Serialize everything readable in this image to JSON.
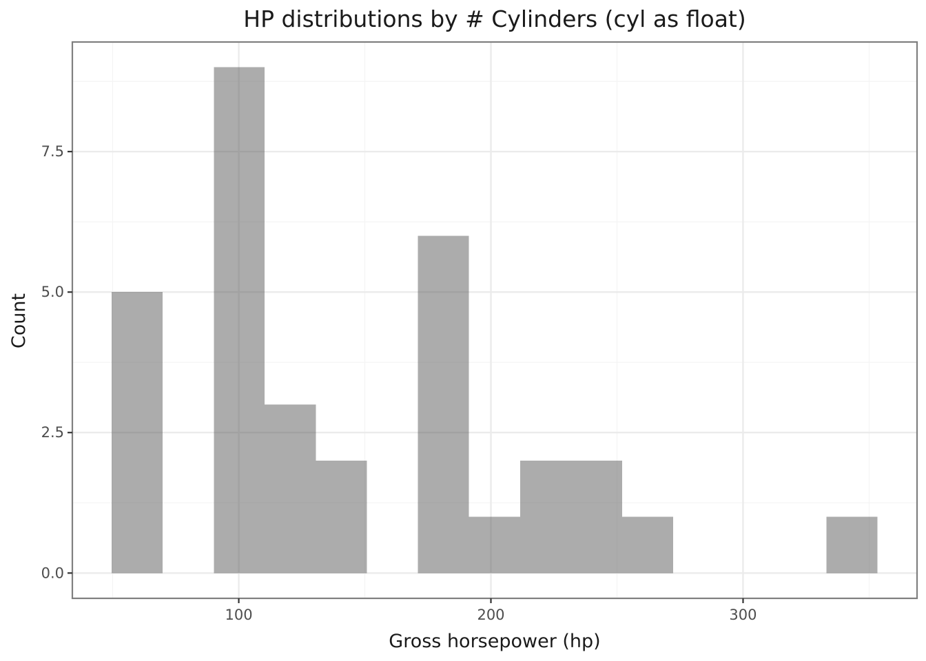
{
  "chart_data": {
    "type": "bar",
    "subtype": "histogram",
    "title": "HP distributions by # Cylinders (cyl as float)",
    "xlabel": "Gross horsepower (hp)",
    "ylabel": "Count",
    "xlim": [
      34,
      369
    ],
    "ylim": [
      -0.45,
      9.45
    ],
    "x_ticks": [
      100,
      200,
      300
    ],
    "x_tick_labels": [
      "100",
      "200",
      "300"
    ],
    "y_ticks": [
      0,
      2.5,
      5,
      7.5
    ],
    "y_tick_labels": [
      "0.0",
      "2.5",
      "5.0",
      "7.5"
    ],
    "bin_width": 20.25,
    "bins": [
      {
        "x0": 49.6,
        "x1": 69.8,
        "count": 5
      },
      {
        "x0": 69.8,
        "x1": 90.1,
        "count": 0
      },
      {
        "x0": 90.1,
        "x1": 110.3,
        "count": 9
      },
      {
        "x0": 110.3,
        "x1": 130.6,
        "count": 3
      },
      {
        "x0": 130.6,
        "x1": 150.8,
        "count": 2
      },
      {
        "x0": 150.8,
        "x1": 171.1,
        "count": 0
      },
      {
        "x0": 171.1,
        "x1": 191.3,
        "count": 6
      },
      {
        "x0": 191.3,
        "x1": 211.6,
        "count": 1
      },
      {
        "x0": 211.6,
        "x1": 231.8,
        "count": 2
      },
      {
        "x0": 231.8,
        "x1": 252.1,
        "count": 2
      },
      {
        "x0": 252.1,
        "x1": 272.3,
        "count": 1
      },
      {
        "x0": 272.3,
        "x1": 292.6,
        "count": 0
      },
      {
        "x0": 292.6,
        "x1": 312.8,
        "count": 0
      },
      {
        "x0": 312.8,
        "x1": 333.1,
        "count": 0
      },
      {
        "x0": 333.1,
        "x1": 353.3,
        "count": 1
      }
    ],
    "bar_color": "#595959",
    "bar_opacity": 0.5,
    "grid": true,
    "legend": "none"
  }
}
